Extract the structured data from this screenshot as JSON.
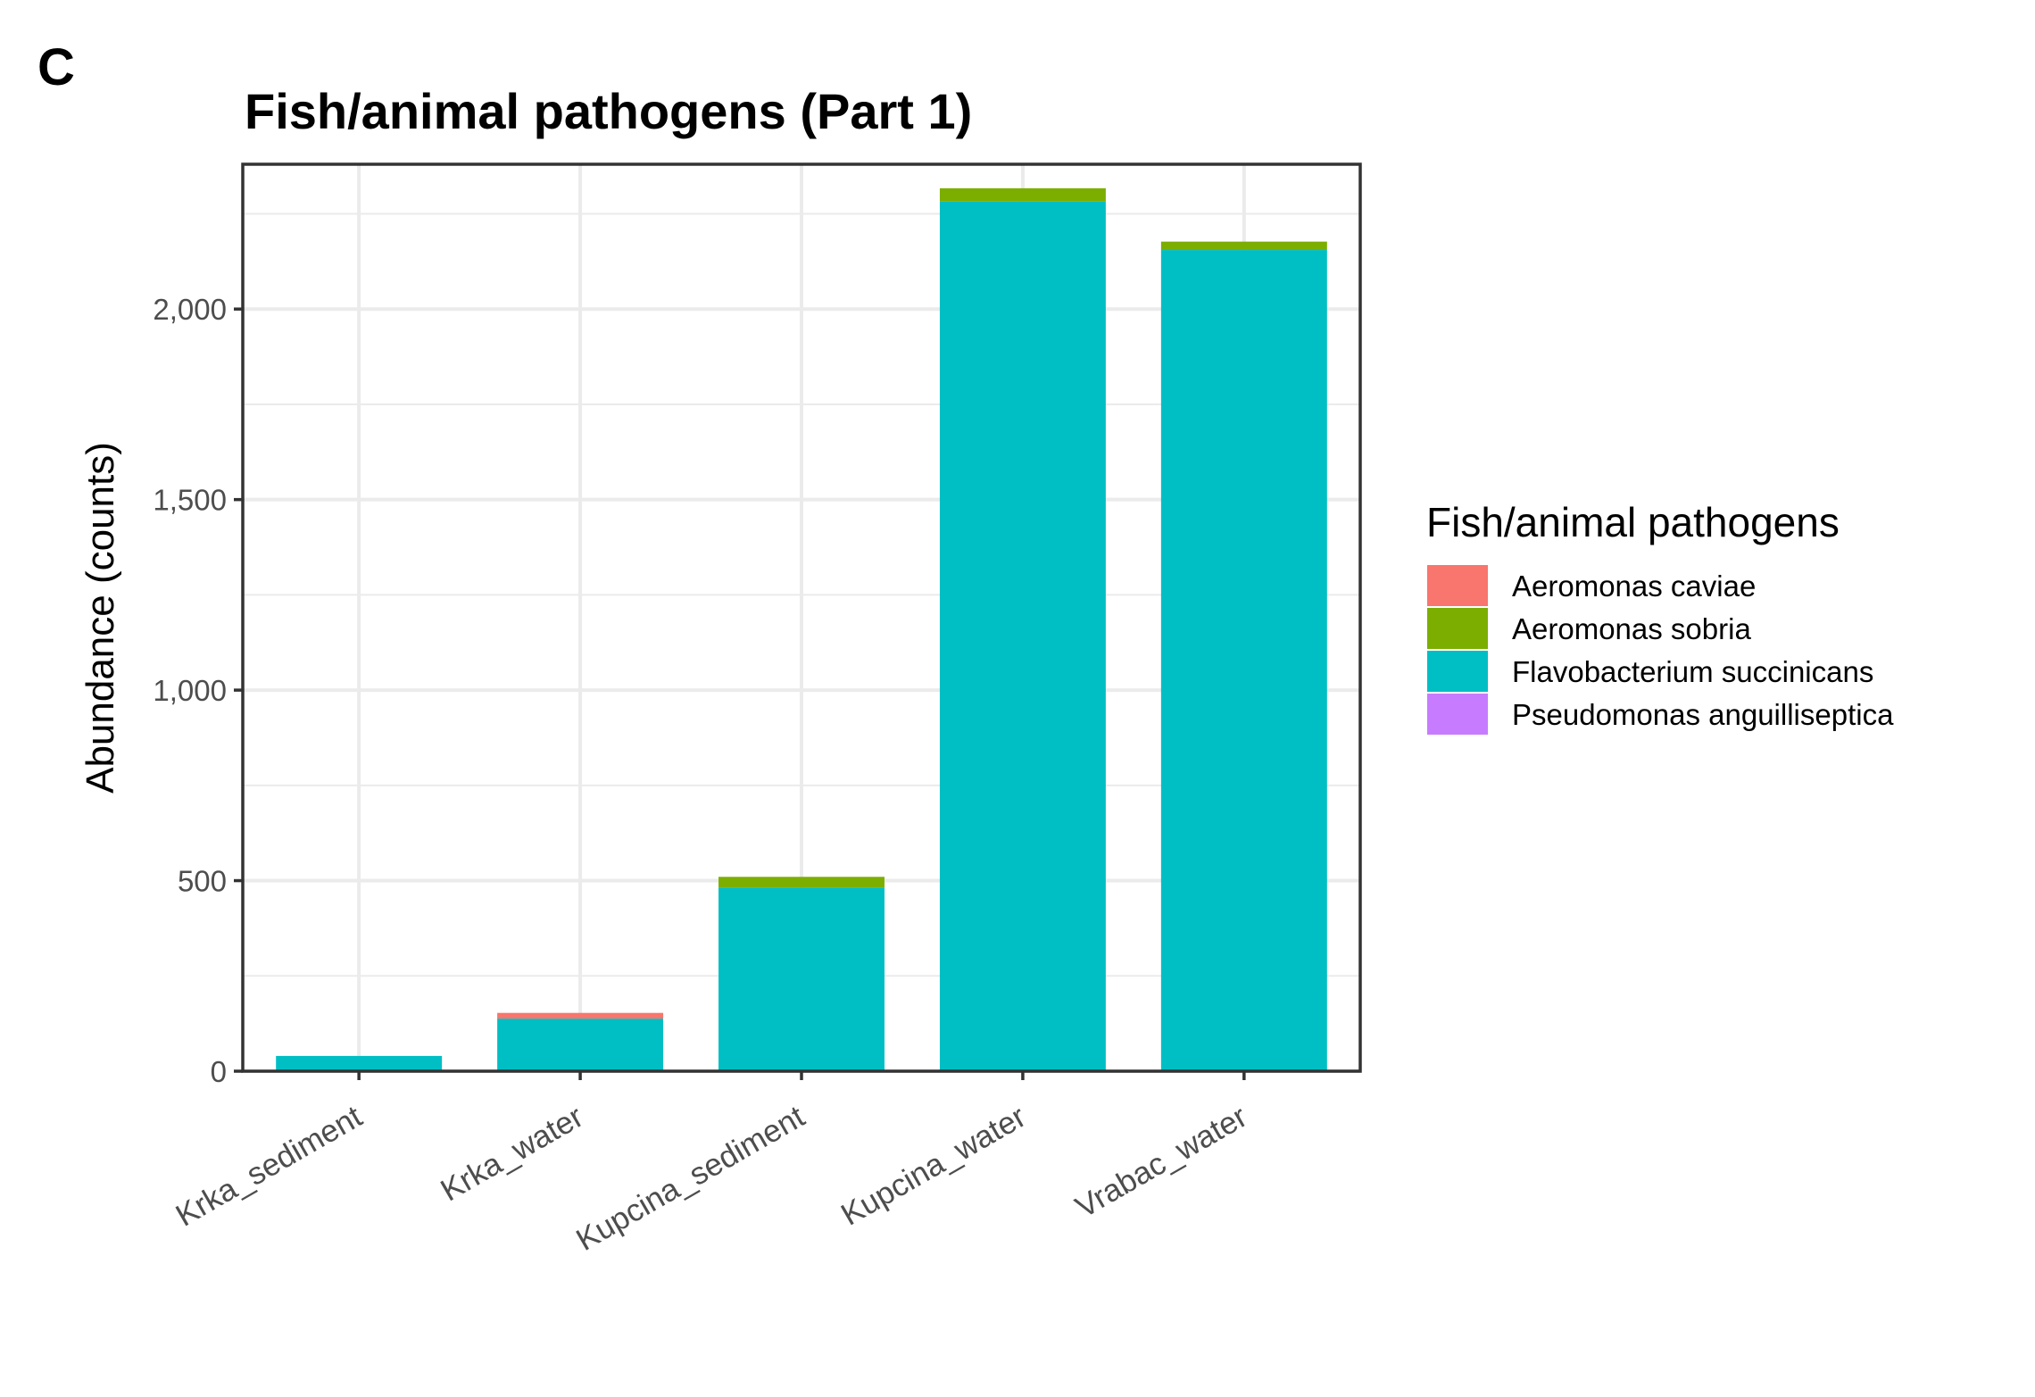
{
  "panel_label": "C",
  "chart_data": {
    "type": "bar",
    "stacked": true,
    "title": "Fish/animal pathogens (Part 1)",
    "xlabel": "",
    "ylabel": "Abundance (counts)",
    "ylim": [
      0,
      2380
    ],
    "y_ticks": [
      0,
      500,
      1000,
      1500,
      2000
    ],
    "y_tick_labels": [
      "0",
      "500",
      "1,000",
      "1,500",
      "2,000"
    ],
    "grid": true,
    "categories": [
      "Krka_sediment",
      "Krka_water",
      "Kupcina_sediment",
      "Kupcina_water",
      "Vrabac_water"
    ],
    "legend": {
      "title": "Fish/animal pathogens",
      "position": "right"
    },
    "series": [
      {
        "name": "Pseudomonas anguilliseptica",
        "color": "#C77CFF",
        "values": [
          0,
          3,
          0,
          0,
          0
        ]
      },
      {
        "name": "Flavobacterium succinicans",
        "color": "#00BFC4",
        "values": [
          40,
          135,
          482,
          2282,
          2155
        ]
      },
      {
        "name": "Aeromonas sobria",
        "color": "#7CAE00",
        "values": [
          0,
          0,
          28,
          35,
          22
        ]
      },
      {
        "name": "Aeromonas caviae",
        "color": "#F8766D",
        "values": [
          0,
          15,
          0,
          0,
          0
        ]
      }
    ],
    "legend_order": [
      "Aeromonas caviae",
      "Aeromonas sobria",
      "Flavobacterium succinicans",
      "Pseudomonas anguilliseptica"
    ]
  }
}
